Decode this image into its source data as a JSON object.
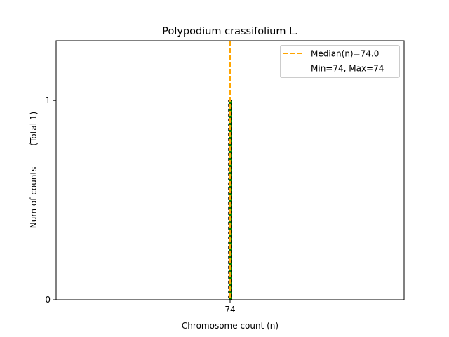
{
  "chart_data": {
    "type": "bar",
    "title": "Polypodium crassifolium L.",
    "xlabel": "Chromosome count (n)",
    "ylabel": "Num of counts",
    "ylabel_total": "(Total 1)",
    "categories": [
      74
    ],
    "values": [
      1
    ],
    "xticks": [
      "74"
    ],
    "yticks": [
      "0",
      "1"
    ],
    "xlim": [
      12,
      136
    ],
    "ylim": [
      0,
      1.3
    ],
    "median": 74.0,
    "legend": {
      "placement": "top-right",
      "entries": [
        "Median(n)=74.0",
        "Min=74, Max=74"
      ]
    },
    "colors": {
      "bar": "#008000",
      "median": "#FFA500",
      "edge": "#000000"
    },
    "grid": false
  }
}
